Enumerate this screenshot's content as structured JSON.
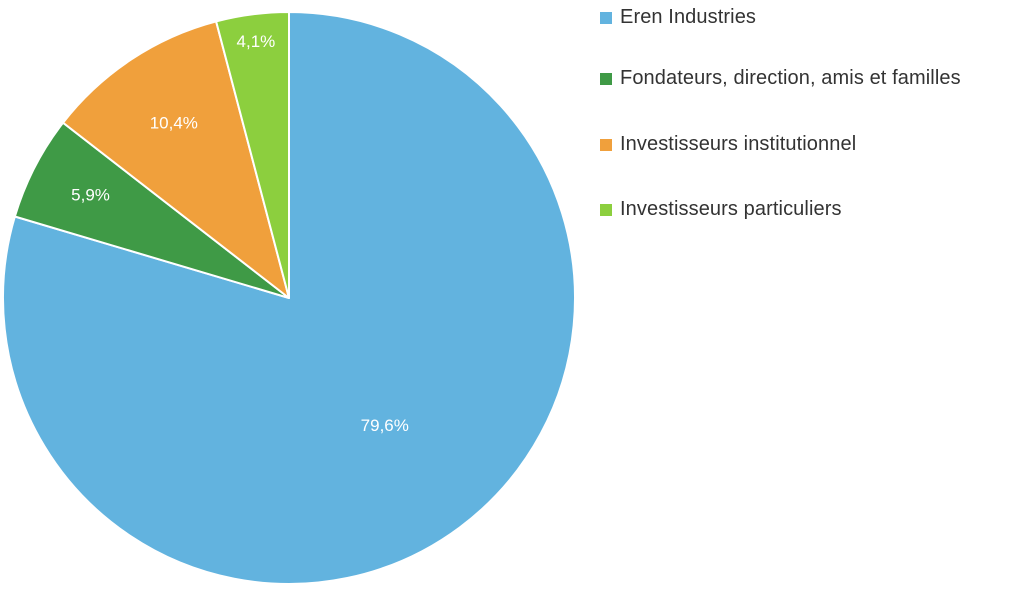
{
  "chart_data": {
    "type": "pie",
    "title": "",
    "legend_position": "right",
    "start": "top (12 o'clock), clockwise",
    "slices": [
      {
        "name": "Eren Industries",
        "value": 79.6,
        "label": "79,6%",
        "color": "#62b3df"
      },
      {
        "name": "Fondateurs, direction, amis et familles",
        "value": 5.9,
        "label": "5,9%",
        "color": "#3f9a46"
      },
      {
        "name": "Investisseurs institutionnel",
        "value": 10.4,
        "label": "10,4%",
        "color": "#f0a03c"
      },
      {
        "name": "Investisseurs particuliers",
        "value": 4.1,
        "label": "4,1%",
        "color": "#8ccf3e"
      }
    ]
  }
}
